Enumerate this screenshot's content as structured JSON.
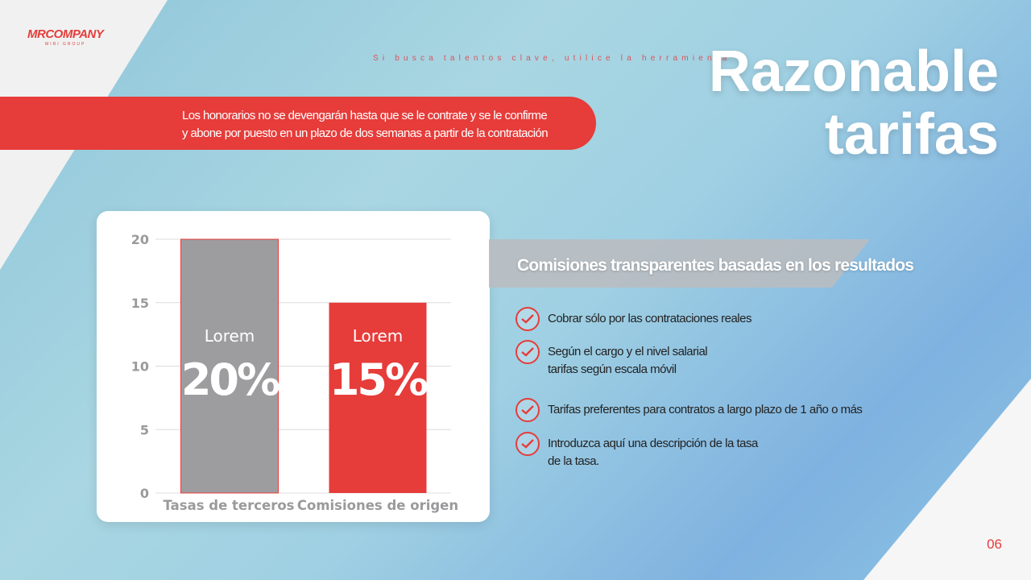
{
  "logo": {
    "brand": "MRCOMPANY",
    "sub": "MIRI GROUP"
  },
  "tagline": "Si busca talentos clave, utilice la herramienta",
  "title": {
    "line1": "Razonable",
    "line2": "tarifas"
  },
  "banner": {
    "line1": "Los honorarios no se devengarán hasta que se le contrate y se le confirme",
    "line2": "y abone por puesto en un plazo de dos semanas a partir de la contratación"
  },
  "chart_data": {
    "type": "bar",
    "categories": [
      "Tasas de terceros",
      "Comisiones de origen"
    ],
    "values": [
      20,
      15
    ],
    "ylim": [
      0,
      20
    ],
    "yticks": [
      0,
      5,
      10,
      15,
      20
    ],
    "grid": true,
    "colors": [
      "#9d9d9f",
      "#e63c3a"
    ],
    "bar_labels": [
      {
        "top": "Lorem",
        "value": "20%"
      },
      {
        "top": "Lorem",
        "value": "15%"
      }
    ]
  },
  "section": {
    "heading": "Comisiones transparentes basadas en los resultados",
    "items": [
      {
        "icon": "check-circle-icon",
        "lines": [
          "Cobrar sólo por las contrataciones reales"
        ]
      },
      {
        "icon": "check-circle-icon",
        "lines": [
          "Según el cargo y el nivel salarial",
          "tarifas según escala móvil"
        ]
      },
      {
        "icon": "check-circle-icon",
        "lines": [
          "Tarifas preferentes para contratos a largo plazo de 1 año o más"
        ]
      },
      {
        "icon": "check-circle-icon",
        "lines": [
          "Introduzca aquí una descripción de la tasa",
          "de la tasa."
        ]
      }
    ]
  },
  "page_number": "06",
  "accent": "#e63c3a"
}
